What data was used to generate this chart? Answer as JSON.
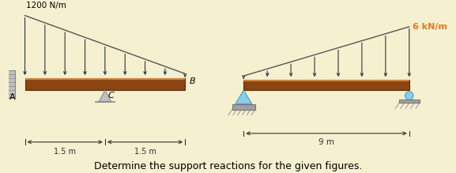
{
  "bg_color": "#f5f0d0",
  "beam_color": "#8B4513",
  "beam_color2": "#A0522D",
  "beam_highlight": "#CD853F",
  "wall_color": "#b0b0b0",
  "support_color": "#87CEEB",
  "arrow_color": "#333333",
  "load_line_color": "#555555",
  "dim_color": "#333333",
  "text_color": "#000000",
  "orange_color": "#E87722",
  "label1": "1200 N/m",
  "label2": "6 kN/m",
  "label_A": "A",
  "label_B": "B",
  "label_C": "C",
  "dim1a": "1.5 m",
  "dim1b": "1.5 m",
  "dim2": "9 m",
  "caption": "Determine the support reactions for the given figures."
}
